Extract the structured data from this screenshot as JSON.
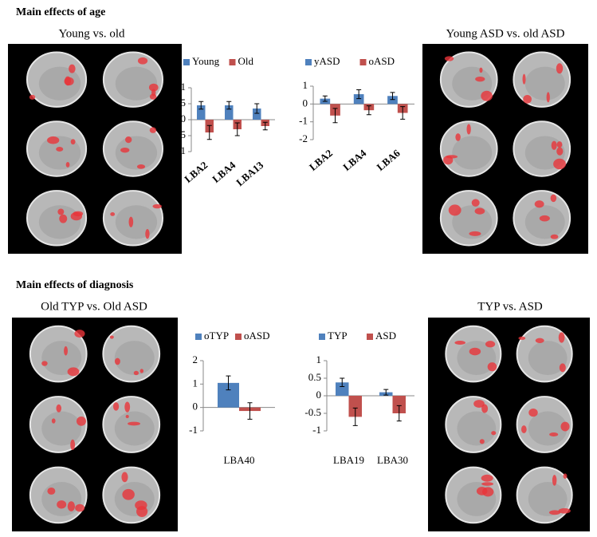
{
  "sections": [
    {
      "title": "Main effects of age",
      "panels": [
        "Young vs. old",
        "Young ASD vs. old ASD"
      ]
    },
    {
      "title": "Main effects of diagnosis",
      "panels": [
        "Old TYP vs. Old ASD",
        "TYP vs. ASD"
      ]
    }
  ],
  "chart_data": [
    {
      "type": "bar",
      "categories": [
        "LBA2",
        "LBA4",
        "LBA13"
      ],
      "series": [
        {
          "name": "Young",
          "color": "#4f81bd",
          "values": [
            0.45,
            0.45,
            0.35
          ],
          "errors": [
            0.12,
            0.12,
            0.15
          ]
        },
        {
          "name": "Old",
          "color": "#c0504d",
          "values": [
            -0.4,
            -0.3,
            -0.2
          ],
          "errors": [
            0.22,
            0.2,
            0.12
          ]
        }
      ],
      "ylim": [
        -1,
        1
      ],
      "yticks": [
        -1,
        -0.5,
        0,
        0.5,
        1
      ],
      "legend": "top"
    },
    {
      "type": "bar",
      "categories": [
        "LBA2",
        "LBA4",
        "LBA6"
      ],
      "series": [
        {
          "name": "yASD",
          "color": "#4f81bd",
          "values": [
            0.3,
            0.55,
            0.45
          ],
          "errors": [
            0.15,
            0.25,
            0.2
          ]
        },
        {
          "name": "oASD",
          "color": "#c0504d",
          "values": [
            -0.65,
            -0.35,
            -0.5
          ],
          "errors": [
            0.4,
            0.25,
            0.35
          ]
        }
      ],
      "ylim": [
        -2,
        1
      ],
      "yticks": [
        -2,
        -1,
        0,
        1
      ],
      "legend": "top"
    },
    {
      "type": "bar",
      "categories": [
        "LBA40"
      ],
      "series": [
        {
          "name": "oTYP",
          "color": "#4f81bd",
          "values": [
            1.05
          ],
          "errors": [
            0.3
          ]
        },
        {
          "name": "oASD",
          "color": "#c0504d",
          "values": [
            -0.15
          ],
          "errors": [
            0.35
          ]
        }
      ],
      "ylim": [
        -1,
        2
      ],
      "yticks": [
        -1,
        0,
        1,
        2
      ],
      "legend": "top"
    },
    {
      "type": "bar",
      "categories": [
        "LBA19",
        "LBA30"
      ],
      "series": [
        {
          "name": "TYP",
          "color": "#4f81bd",
          "values": [
            0.38,
            0.1
          ],
          "errors": [
            0.12,
            0.08
          ]
        },
        {
          "name": "ASD",
          "color": "#c0504d",
          "values": [
            -0.6,
            -0.5
          ],
          "errors": [
            0.25,
            0.22
          ]
        }
      ],
      "ylim": [
        -1,
        1
      ],
      "yticks": [
        -1,
        -0.5,
        0,
        0.5,
        1
      ],
      "legend": "top"
    }
  ]
}
